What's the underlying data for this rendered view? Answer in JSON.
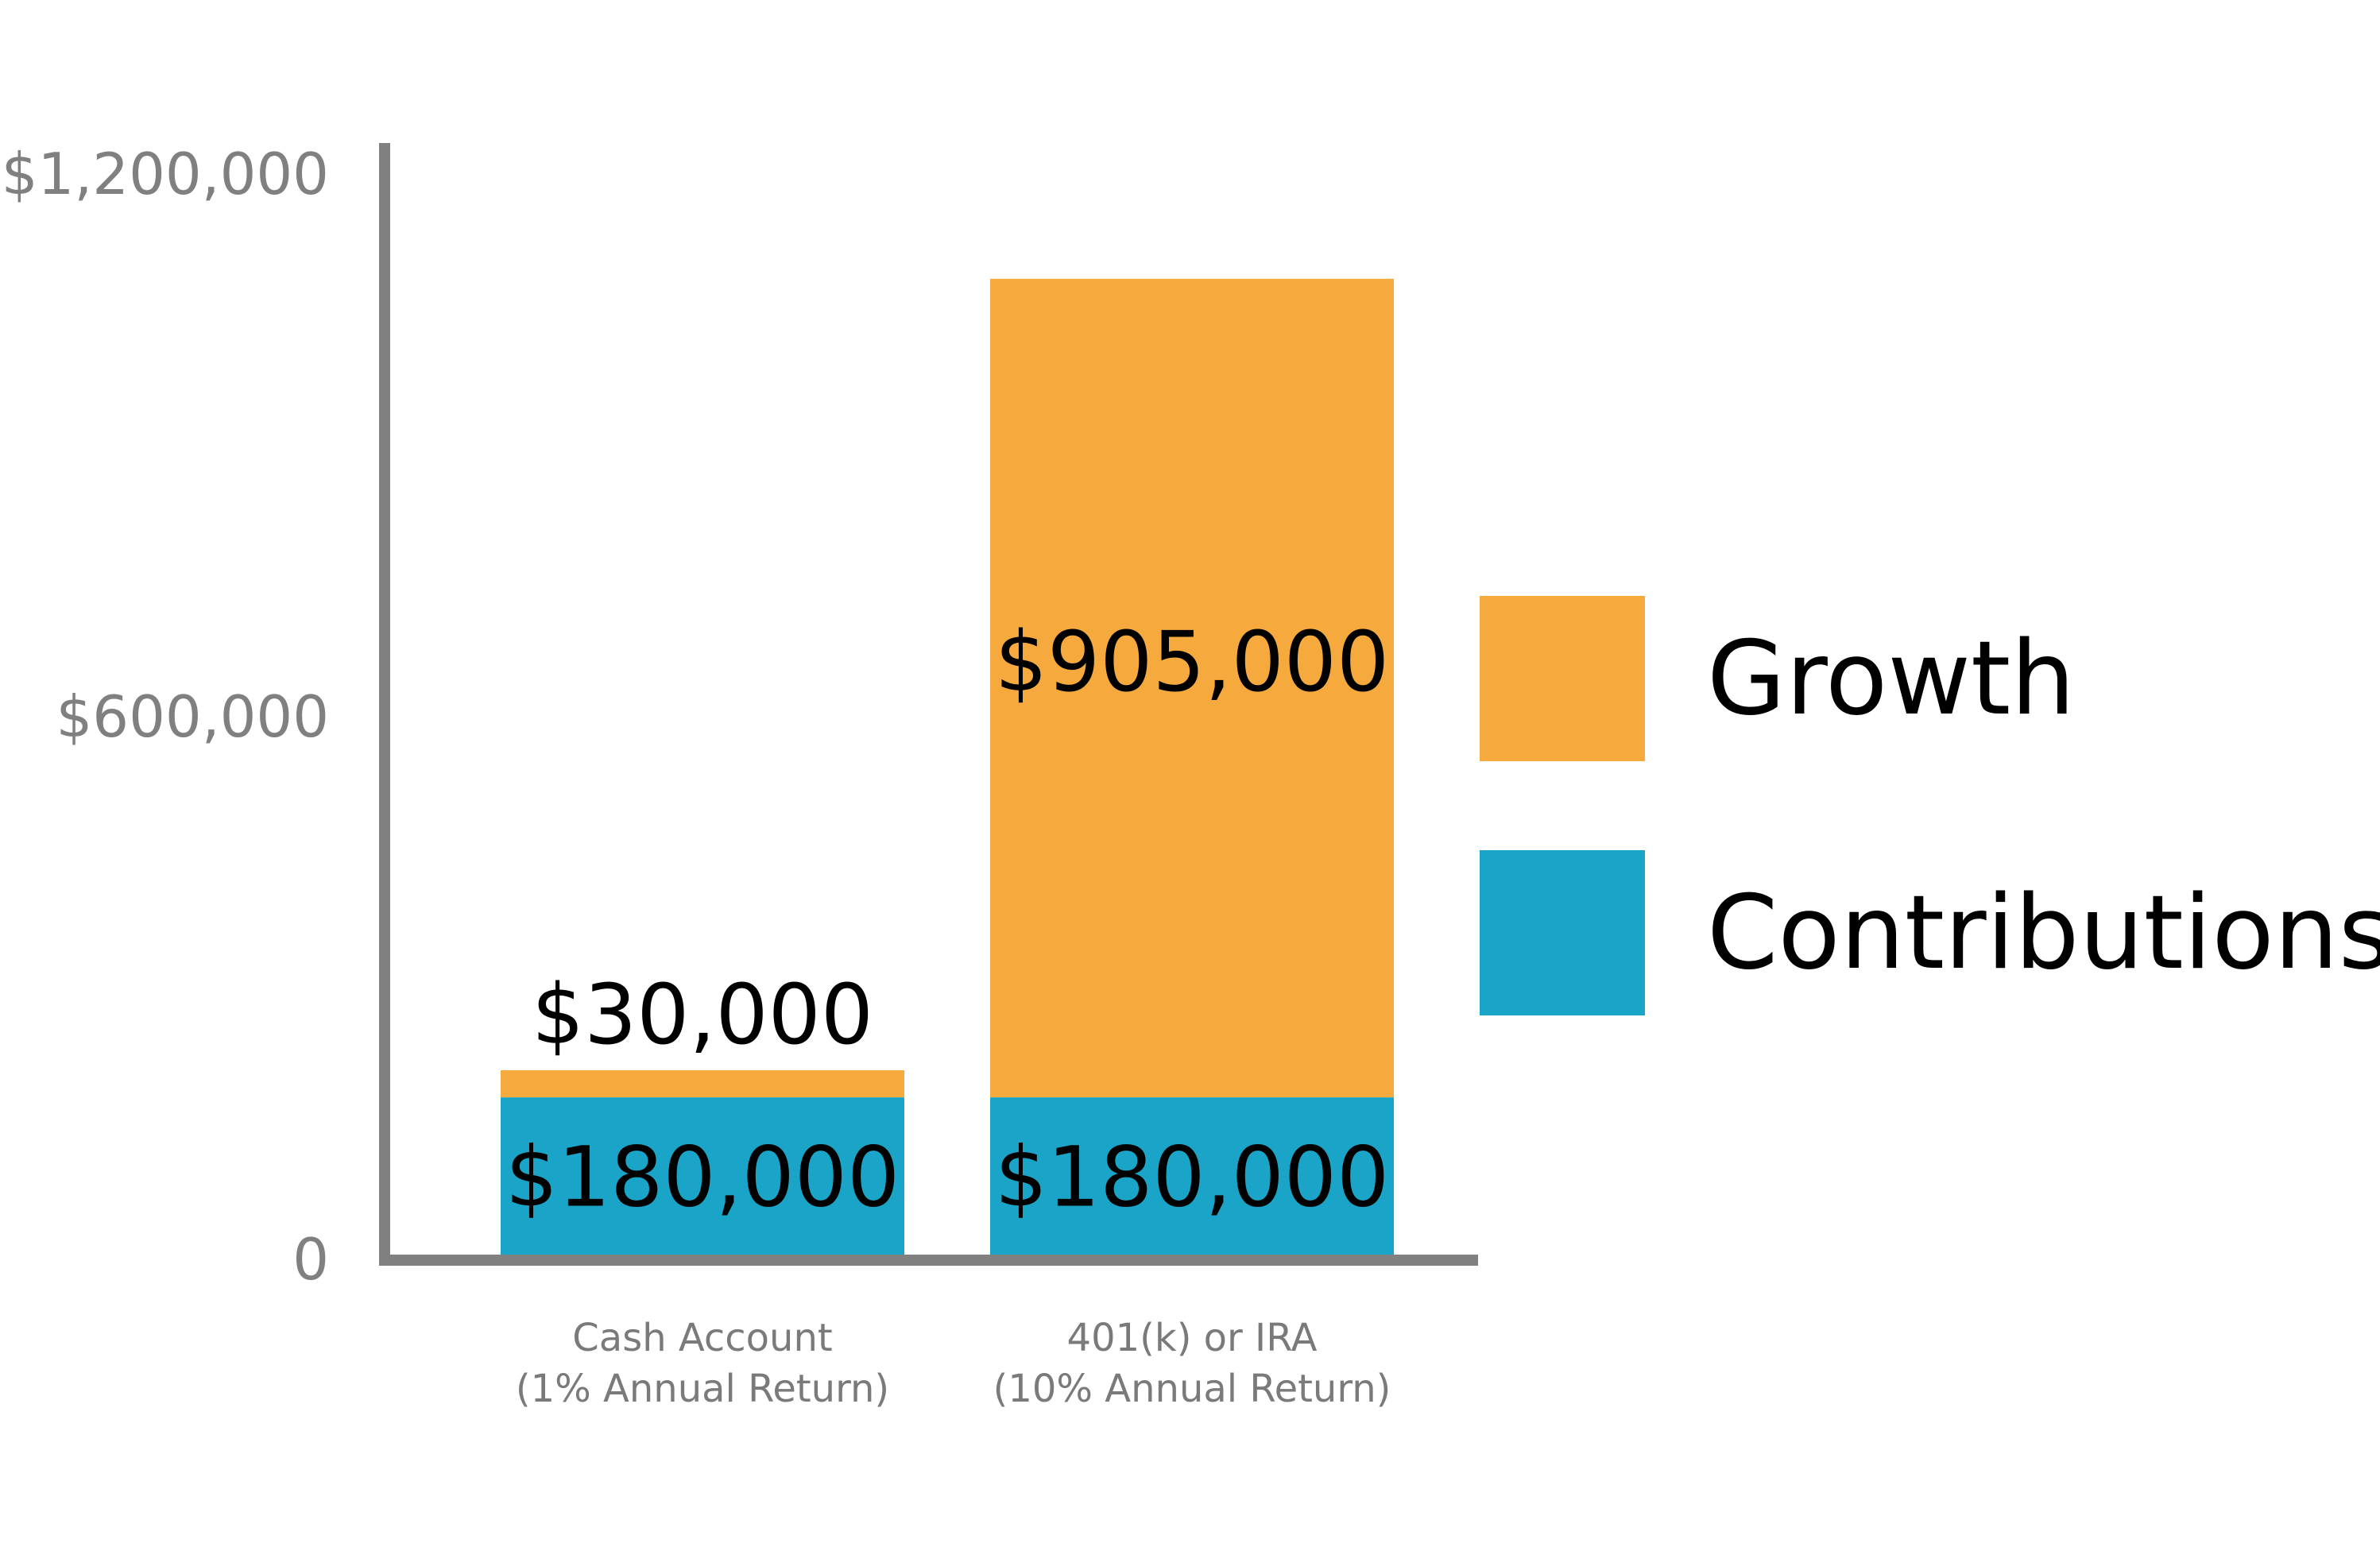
{
  "chart_data": {
    "type": "bar",
    "stacked": true,
    "categories": [
      [
        "Cash Account",
        "(1% Annual Return)"
      ],
      [
        "401(k) or IRA",
        "(10% Annual Return)"
      ]
    ],
    "series": [
      {
        "name": "Contributions",
        "color": "#1AA5C8",
        "values": [
          180000,
          180000
        ],
        "labels": [
          "$180,000",
          "$180,000"
        ]
      },
      {
        "name": "Growth",
        "color": "#F6AA3E",
        "values": [
          30000,
          905000
        ],
        "labels": [
          "$30,000",
          "$905,000"
        ]
      }
    ],
    "ylim": [
      0,
      1200000
    ],
    "yticks": [
      {
        "value": 0,
        "label": "0"
      },
      {
        "value": 600000,
        "label": "$600,000"
      },
      {
        "value": 1200000,
        "label": "$1,200,000"
      }
    ],
    "title": "",
    "xlabel": "",
    "ylabel": "",
    "legend": {
      "position": "right",
      "order": [
        "Growth",
        "Contributions"
      ]
    },
    "axis_color": "#808080",
    "tick_label_color": "#808080",
    "category_label_color": "#7A7A7A",
    "grid": false
  }
}
